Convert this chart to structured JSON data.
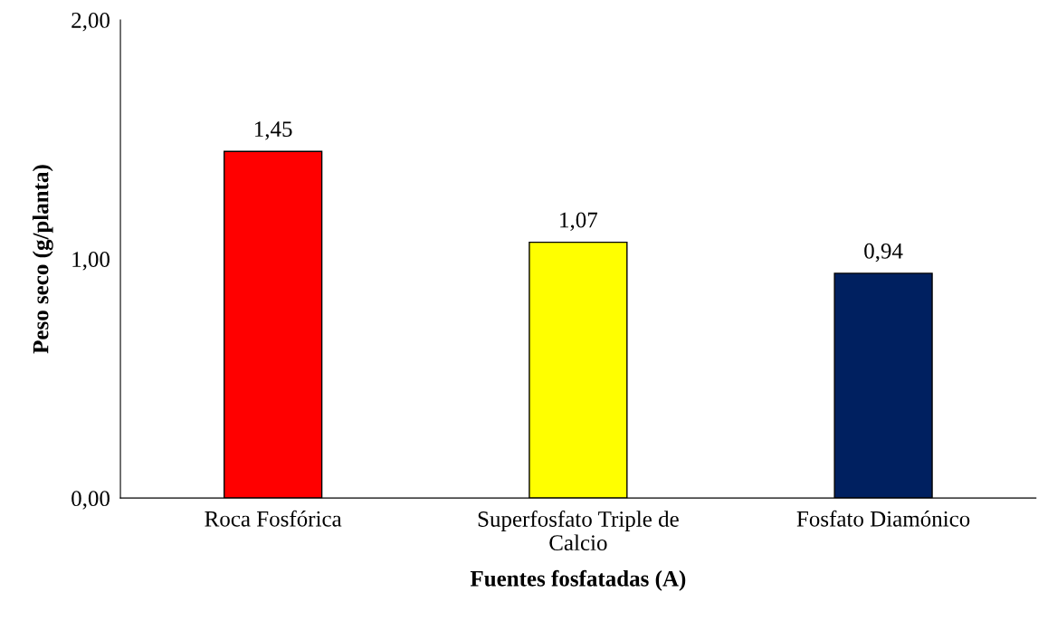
{
  "chart_data": {
    "type": "bar",
    "xlabel": "Fuentes fosfatadas (A)",
    "ylabel": "Peso seco (g/planta)",
    "categories": [
      "Roca Fosfórica",
      "Superfosfato Triple de Calcio",
      "Fosfato Diamónico"
    ],
    "values": [
      1.45,
      1.07,
      0.94
    ],
    "colors": [
      "#ff0000",
      "#ffff00",
      "#002060"
    ],
    "value_labels": [
      "1,45",
      "1,07",
      "0,94"
    ],
    "ylim": [
      0,
      2
    ],
    "yticks": [
      {
        "value": 0,
        "label": "0,00"
      },
      {
        "value": 1,
        "label": "1,00"
      },
      {
        "value": 2,
        "label": "2,00"
      }
    ],
    "grid": false,
    "legend": false
  }
}
